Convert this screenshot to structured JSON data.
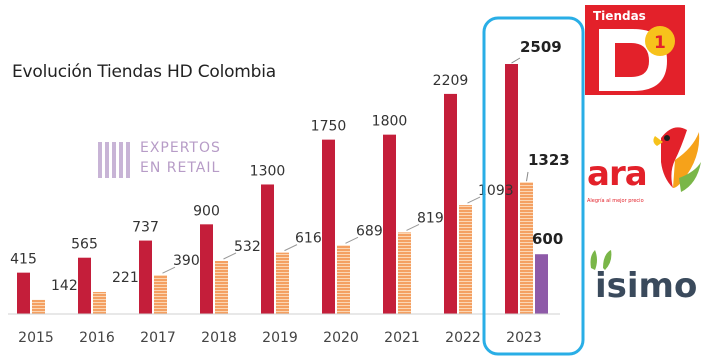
{
  "chart_data": {
    "type": "bar",
    "title": "Evolución Tiendas HD Colombia",
    "categories": [
      "2015",
      "2016",
      "2017",
      "2018",
      "2019",
      "2020",
      "2021",
      "2022",
      "2023"
    ],
    "series": [
      {
        "name": "D1",
        "color": "#c41e3a",
        "values": [
          415,
          565,
          737,
          900,
          1300,
          1750,
          1800,
          2209,
          2509
        ]
      },
      {
        "name": "Ara",
        "color": "#f4a062",
        "values": [
          142,
          221,
          390,
          532,
          616,
          689,
          819,
          1093,
          1323
        ]
      },
      {
        "name": "Isimo",
        "color": "#8e5aa8",
        "values": [
          null,
          null,
          null,
          null,
          null,
          null,
          null,
          null,
          600
        ]
      }
    ],
    "ylim": [
      0,
      2750
    ],
    "grid": false,
    "highlight": {
      "category": "2023",
      "color": "#29aee6"
    }
  },
  "watermark": {
    "line1": "EXPERTOS",
    "line2": "EN RETAIL"
  },
  "logos": {
    "d1_label": "Tiendas",
    "ara_name": "ara",
    "ara_tagline": "Alegría al mejor precio",
    "isimo_name": "isimo"
  }
}
